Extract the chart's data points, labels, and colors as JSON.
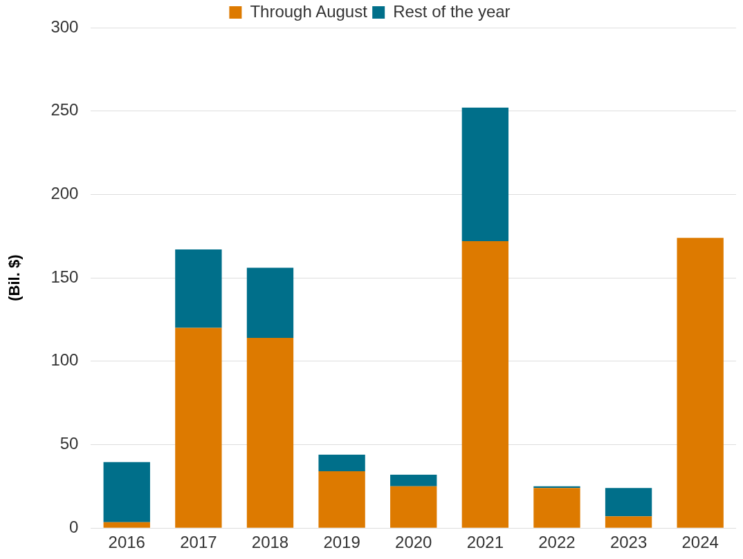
{
  "chart_data": {
    "type": "bar",
    "ylabel": "(Bil. $)",
    "categories": [
      "2016",
      "2017",
      "2018",
      "2019",
      "2020",
      "2021",
      "2022",
      "2023",
      "2024"
    ],
    "series": [
      {
        "name": "Through August",
        "color": "#dd7a00",
        "values": [
          3.5,
          120,
          114,
          34,
          25,
          172,
          24,
          7,
          174
        ]
      },
      {
        "name": "Rest of the year",
        "color": "#006f8a",
        "values": [
          36,
          47,
          42,
          10,
          7,
          80,
          1,
          17,
          0
        ]
      }
    ],
    "stacked": true,
    "ylim": [
      0,
      300
    ],
    "yticks": [
      0,
      50,
      100,
      150,
      200,
      250,
      300
    ],
    "grid": "y",
    "legend": "top"
  }
}
